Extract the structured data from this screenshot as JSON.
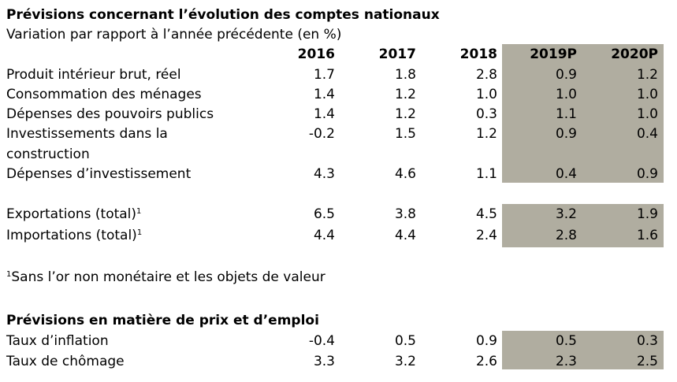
{
  "title": "Prévisions concernant l’évolution des comptes nationaux",
  "subtitle": "Variation par rapport à l’année précédente (en %)",
  "columns": [
    "2016",
    "2017",
    "2018",
    "2019P",
    "2020P"
  ],
  "national_accounts": [
    {
      "label": "Produit intérieur brut, réel",
      "values": [
        "1.7",
        "1.8",
        "2.8",
        "0.9",
        "1.2"
      ]
    },
    {
      "label": "Consommation des ménages",
      "values": [
        "1.4",
        "1.2",
        "1.0",
        "1.0",
        "1.0"
      ]
    },
    {
      "label": "Dépenses des pouvoirs publics",
      "values": [
        "1.4",
        "1.2",
        "0.3",
        "1.1",
        "1.0"
      ]
    },
    {
      "label_line1": "Investissements dans la",
      "label_line2": "construction",
      "values": [
        "-0.2",
        "1.5",
        "1.2",
        "0.9",
        "0.4"
      ]
    },
    {
      "label": "Dépenses d’investissement",
      "values": [
        "4.3",
        "4.6",
        "1.1",
        "0.4",
        "0.9"
      ]
    }
  ],
  "trade": [
    {
      "label": "Exportations (total)",
      "footnote_mark": "1",
      "values": [
        "6.5",
        "3.8",
        "4.5",
        "3.2",
        "1.9"
      ]
    },
    {
      "label": "Importations (total)",
      "footnote_mark": "1",
      "values": [
        "4.4",
        "4.4",
        "2.4",
        "2.8",
        "1.6"
      ]
    }
  ],
  "footnote": {
    "mark": "1",
    "text": "Sans l’or non monétaire et les objets de valeur"
  },
  "price_section_title": "Prévisions en matière de prix et d’emploi",
  "prices": [
    {
      "label": "Taux d’inflation",
      "values": [
        "-0.4",
        "0.5",
        "0.9",
        "0.5",
        "0.3"
      ]
    },
    {
      "label": "Taux de chômage",
      "values": [
        "3.3",
        "3.2",
        "2.6",
        "2.3",
        "2.5"
      ]
    }
  ],
  "colors": {
    "forecast_shade": "#b0ada0",
    "text": "#000000",
    "background": "#ffffff"
  }
}
